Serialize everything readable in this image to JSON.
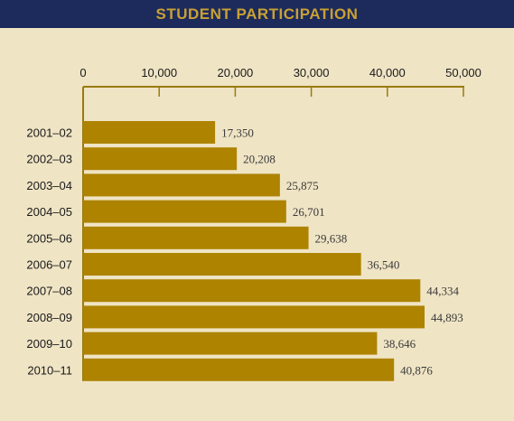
{
  "header": {
    "title": "STUDENT PARTICIPATION"
  },
  "colors": {
    "header_bg": "#1c2a5c",
    "title": "#c9a133",
    "bar": "#ad8300",
    "background": "#efe4c4",
    "axis": "#9a7a10"
  },
  "chart_data": {
    "type": "bar",
    "orientation": "horizontal",
    "title": "STUDENT PARTICIPATION",
    "categories": [
      "2001–02",
      "2002–03",
      "2003–04",
      "2004–05",
      "2005–06",
      "2006–07",
      "2007–08",
      "2008–09",
      "2009–10",
      "2010–11"
    ],
    "values": [
      17350,
      20208,
      25875,
      26701,
      29638,
      36540,
      44334,
      44893,
      38646,
      40876
    ],
    "value_labels": [
      "17,350",
      "20,208",
      "25,875",
      "26,701",
      "29,638",
      "36,540",
      "44,334",
      "44,893",
      "38,646",
      "40,876"
    ],
    "xlim": [
      0,
      50000
    ],
    "ticks": [
      0,
      10000,
      20000,
      30000,
      40000,
      50000
    ],
    "tick_labels": [
      "0",
      "10,000",
      "20,000",
      "30,000",
      "40,000",
      "50,000"
    ],
    "axis_position": "top",
    "grid": false,
    "legend": "none"
  }
}
